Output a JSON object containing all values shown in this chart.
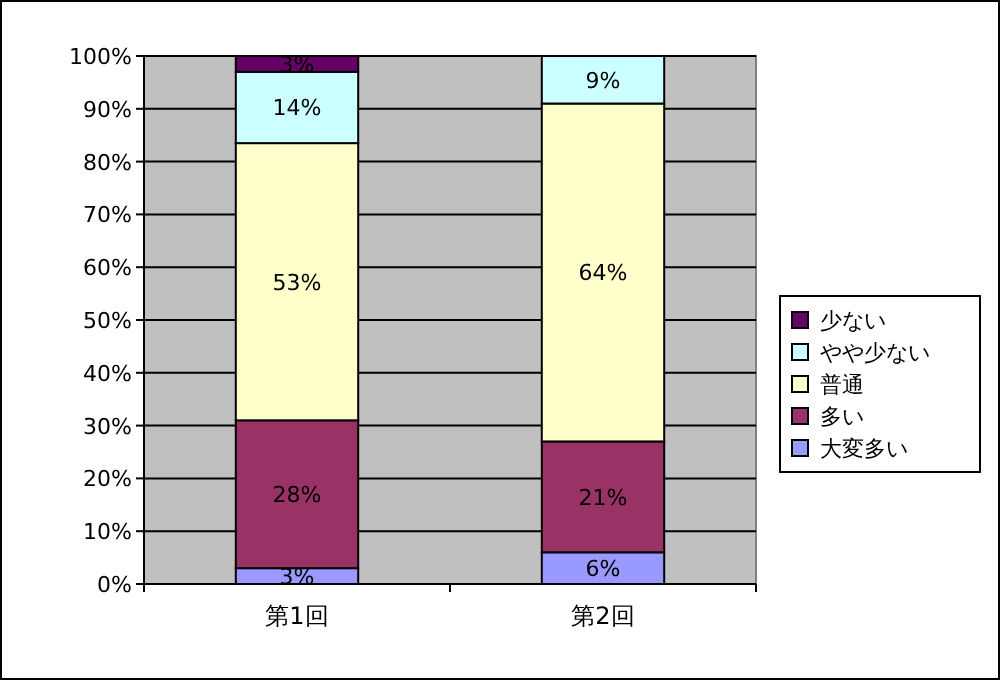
{
  "chart_data": {
    "type": "bar",
    "stacked": true,
    "categories": [
      "第1回",
      "第2回"
    ],
    "series": [
      {
        "name": "大変多い",
        "color": "#9999ff",
        "values": [
          3,
          6
        ],
        "value_labels": [
          "3%",
          "6%"
        ]
      },
      {
        "name": "多い",
        "color": "#993366",
        "values": [
          28,
          21
        ],
        "value_labels": [
          "28%",
          "21%"
        ]
      },
      {
        "name": "普通",
        "color": "#ffffcc",
        "values": [
          52.5,
          64
        ],
        "value_labels": [
          "53%",
          "64%"
        ]
      },
      {
        "name": "やや少ない",
        "color": "#ccffff",
        "values": [
          13.5,
          9
        ],
        "value_labels": [
          "14%",
          "9%"
        ]
      },
      {
        "name": "少ない",
        "color": "#660066",
        "values": [
          3,
          0
        ],
        "value_labels": [
          "3%",
          null
        ]
      }
    ],
    "ylim": [
      0,
      100
    ],
    "yticks": [
      {
        "value": 0,
        "label": "0%"
      },
      {
        "value": 10,
        "label": "10%"
      },
      {
        "value": 20,
        "label": "20%"
      },
      {
        "value": 30,
        "label": "30%"
      },
      {
        "value": 40,
        "label": "40%"
      },
      {
        "value": 50,
        "label": "50%"
      },
      {
        "value": 60,
        "label": "60%"
      },
      {
        "value": 70,
        "label": "70%"
      },
      {
        "value": 80,
        "label": "80%"
      },
      {
        "value": 90,
        "label": "90%"
      },
      {
        "value": 100,
        "label": "100%"
      }
    ],
    "grid": "y",
    "legend": "right"
  }
}
